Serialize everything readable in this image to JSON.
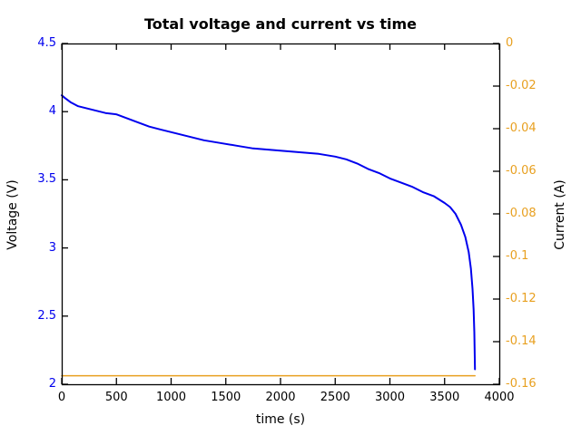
{
  "chart_data": {
    "type": "line",
    "title": "Total voltage and current vs time",
    "xlabel": "time (s)",
    "ylabel_left": "Voltage (V)",
    "ylabel_right": "Current (A)",
    "xlim": [
      0,
      4000
    ],
    "ylim_left": [
      2,
      4.5
    ],
    "ylim_right": [
      -0.16,
      0
    ],
    "grid": false,
    "legend": "none",
    "border_color": "#000000",
    "left_axis_color": "#0000ee",
    "right_axis_color": "#e8a020",
    "xtick_values": [
      0,
      500,
      1000,
      1500,
      2000,
      2500,
      3000,
      3500,
      4000
    ],
    "xtick_labels": [
      "0",
      "500",
      "1000",
      "1500",
      "2000",
      "2500",
      "3000",
      "3500",
      "4000"
    ],
    "ytick_left_values": [
      2,
      2.5,
      3,
      3.5,
      4,
      4.5
    ],
    "ytick_left_labels": [
      "2",
      "2.5",
      "3",
      "3.5",
      "4",
      "4.5"
    ],
    "ytick_right_values": [
      0,
      -0.02,
      -0.04,
      -0.06,
      -0.08,
      -0.1,
      -0.12,
      -0.14,
      -0.16
    ],
    "ytick_right_labels": [
      "0",
      "-0.02",
      "-0.04",
      "-0.06",
      "-0.08",
      "-0.1",
      "-0.12",
      "-0.14",
      "-0.16"
    ],
    "series": [
      {
        "name": "Total voltage [V]",
        "axis": "left",
        "color": "#0000ee",
        "width": 2,
        "x": [
          0,
          30,
          80,
          150,
          250,
          400,
          500,
          600,
          700,
          800,
          900,
          1000,
          1150,
          1300,
          1450,
          1600,
          1750,
          1900,
          2050,
          2200,
          2350,
          2500,
          2600,
          2700,
          2800,
          2900,
          3000,
          3100,
          3200,
          3300,
          3400,
          3500,
          3550,
          3600,
          3650,
          3690,
          3720,
          3740,
          3755,
          3765,
          3772,
          3778
        ],
        "y": [
          4.12,
          4.1,
          4.07,
          4.04,
          4.02,
          3.99,
          3.98,
          3.95,
          3.92,
          3.89,
          3.87,
          3.85,
          3.82,
          3.79,
          3.77,
          3.75,
          3.73,
          3.72,
          3.71,
          3.7,
          3.69,
          3.67,
          3.65,
          3.62,
          3.58,
          3.55,
          3.51,
          3.48,
          3.45,
          3.41,
          3.38,
          3.33,
          3.3,
          3.25,
          3.17,
          3.08,
          2.97,
          2.85,
          2.7,
          2.55,
          2.38,
          2.11
        ]
      },
      {
        "name": "Current [A]",
        "axis": "right",
        "color": "#e8a020",
        "width": 1.5,
        "x": [
          0,
          3778
        ],
        "y": [
          -0.156,
          -0.156
        ]
      }
    ]
  }
}
